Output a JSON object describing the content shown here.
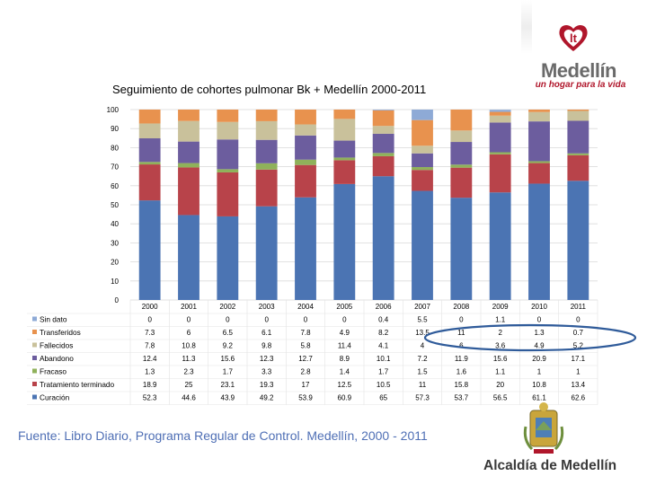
{
  "branding": {
    "city_logo_title": "Medellín",
    "city_logo_slogan": "un hogar para la vida",
    "footer_logo_text": "Alcaldía de Medellín"
  },
  "source_note": "Fuente: Libro Diario, Programa Regular de Control. Medellín, 2000 -  2011",
  "chart_data": {
    "type": "stacked-bar-with-table",
    "title": "Seguimiento de cohortes pulmonar Bk + Medellín 2000-2011",
    "ylim": [
      0,
      100
    ],
    "yticks": [
      0,
      10,
      20,
      30,
      40,
      50,
      60,
      70,
      80,
      90,
      100
    ],
    "categories": [
      "2000",
      "2001",
      "2002",
      "2003",
      "2004",
      "2005",
      "2006",
      "2007",
      "2008",
      "2009",
      "2010",
      "2011"
    ],
    "stack_order_bottom_to_top": [
      "Curación",
      "Tratamiento terminado",
      "Fracaso",
      "Abandono",
      "Fallecidos",
      "Transferidos",
      "Sin dato"
    ],
    "series": [
      {
        "name": "Sin dato",
        "color": "#8eaad6",
        "values": [
          "0",
          "0",
          "0",
          "0",
          "0",
          "0",
          "0.4",
          "5.5",
          "0",
          "1.1",
          "0",
          "0"
        ]
      },
      {
        "name": "Transferidos",
        "color": "#e8924e",
        "values": [
          "7.3",
          "6",
          "6.5",
          "6.1",
          "7.8",
          "4.9",
          "8.2",
          "13.5",
          "11",
          "2",
          "1.3",
          "0.7"
        ]
      },
      {
        "name": "Fallecidos",
        "color": "#c9c19b",
        "values": [
          "7.8",
          "10.8",
          "9.2",
          "9.8",
          "5.8",
          "11.4",
          "4.1",
          "4",
          "6",
          "3.6",
          "4.9",
          "5.2"
        ]
      },
      {
        "name": "Abandono",
        "color": "#6c5d9e",
        "values": [
          "12.4",
          "11.3",
          "15.6",
          "12.3",
          "12.7",
          "8.9",
          "10.1",
          "7.2",
          "11.9",
          "15.6",
          "20.9",
          "17.1"
        ]
      },
      {
        "name": "Fracaso",
        "color": "#8fb15a",
        "values": [
          "1.3",
          "2.3",
          "1.7",
          "3.3",
          "2.8",
          "1.4",
          "1.7",
          "1.5",
          "1.6",
          "1.1",
          "1",
          "1"
        ]
      },
      {
        "name": "Tratamiento terminado",
        "color": "#b8434a",
        "values": [
          "18.9",
          "25",
          "23.1",
          "19.3",
          "17",
          "12.5",
          "10.5",
          "11",
          "15.8",
          "20",
          "10.8",
          "13.4"
        ]
      },
      {
        "name": "Curación",
        "color": "#4b74b3",
        "values": [
          "52.3",
          "44.6",
          "43.9",
          "49.2",
          "53.9",
          "60.9",
          "65",
          "57.3",
          "53.7",
          "56.5",
          "61.1",
          "62.6"
        ]
      }
    ],
    "annotation": "blue ellipse highlighting Transferidos and Fallecidos values for 2008-2011"
  }
}
